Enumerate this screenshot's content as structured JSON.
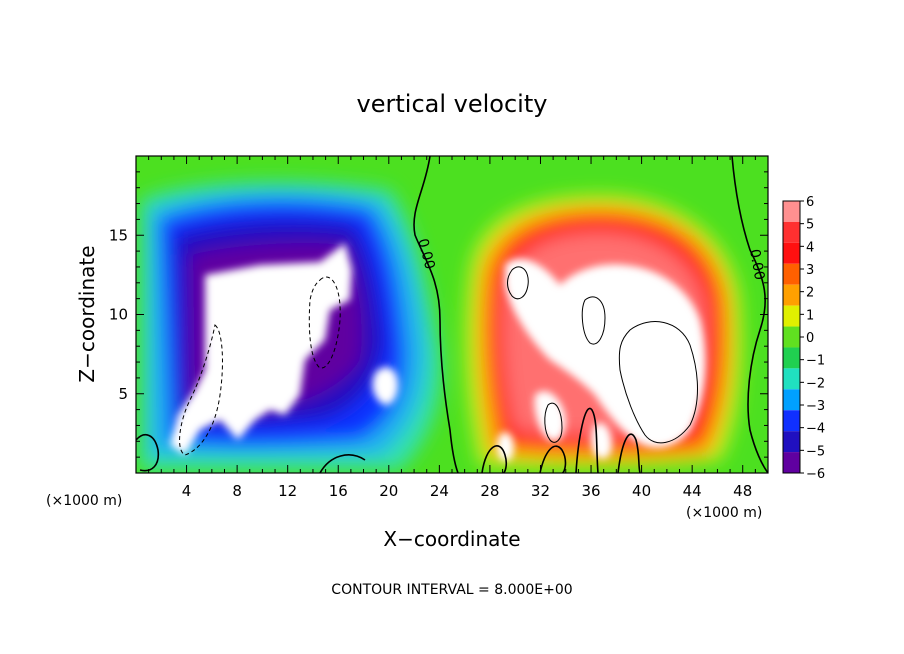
{
  "chart_data": {
    "type": "heatmap",
    "title": "vertical velocity",
    "xlabel": "X−coordinate",
    "ylabel": "Z−coordinate",
    "x_unit": "(×1000 m)",
    "x_unit_right": "(×1000 m)",
    "xlim": [
      0,
      50
    ],
    "ylim": [
      0,
      20
    ],
    "x_ticks": [
      4,
      8,
      12,
      16,
      20,
      24,
      28,
      32,
      36,
      40,
      44,
      48
    ],
    "y_ticks": [
      5,
      10,
      15
    ],
    "colorbar": {
      "levels": [
        6,
        5,
        4,
        3,
        2,
        1,
        0,
        -1,
        -2,
        -3,
        -4,
        -5,
        -6
      ],
      "labels": [
        "6",
        "5",
        "4",
        "3",
        "2",
        "1",
        "0",
        "−1",
        "−2",
        "−3",
        "−4",
        "−5",
        "−6"
      ],
      "colors": [
        "#ff9090",
        "#ff3030",
        "#ff1010",
        "#ff6000",
        "#ffa000",
        "#e0f000",
        "#60e020",
        "#20d050",
        "#20e0c0",
        "#00a0ff",
        "#1030ff",
        "#2010c0",
        "#6000a0"
      ]
    },
    "contour_labels": [
      "0.00",
      "0.00"
    ],
    "footer": "CONTOUR INTERVAL = 8.000E+00",
    "features": [
      {
        "kind": "downdraft",
        "x_range": [
          2,
          22
        ],
        "z_range": [
          0,
          16
        ],
        "min_w": -6
      },
      {
        "kind": "updraft",
        "x_range": [
          22,
          46
        ],
        "z_range": [
          0,
          17
        ],
        "max_w": 6
      }
    ]
  }
}
